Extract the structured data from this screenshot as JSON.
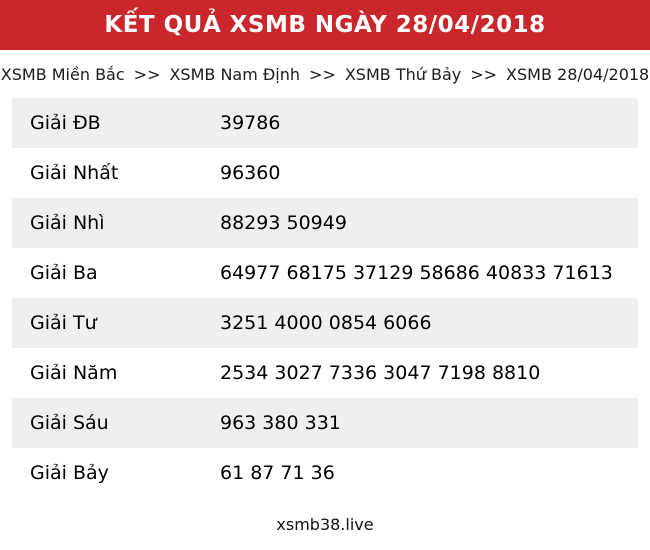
{
  "header": {
    "title": "KẾT QUẢ XSMB NGÀY 28/04/2018"
  },
  "breadcrumb": {
    "separator": ">>",
    "items": [
      "XSMB Miền Bắc",
      "XSMB Nam Định",
      "XSMB Thứ Bảy",
      "XSMB 28/04/2018"
    ]
  },
  "results": {
    "rows": [
      {
        "label": "Giải ĐB",
        "numbers": "39786"
      },
      {
        "label": "Giải Nhất",
        "numbers": "96360"
      },
      {
        "label": "Giải Nhì",
        "numbers": "88293 50949"
      },
      {
        "label": "Giải Ba",
        "numbers": "64977 68175 37129 58686 40833 71613"
      },
      {
        "label": "Giải Tư",
        "numbers": "3251 4000 0854 6066"
      },
      {
        "label": "Giải Năm",
        "numbers": "2534 3027 7336 3047 7198 8810"
      },
      {
        "label": "Giải Sáu",
        "numbers": "963 380 331"
      },
      {
        "label": "Giải Bảy",
        "numbers": "61 87 71 36"
      }
    ]
  },
  "footer": {
    "site": "xsmb38.live"
  },
  "colors": {
    "header_bg": "#c9272b",
    "header_text": "#ffffff",
    "row_alt_bg": "#efefef",
    "text": "#000000"
  }
}
